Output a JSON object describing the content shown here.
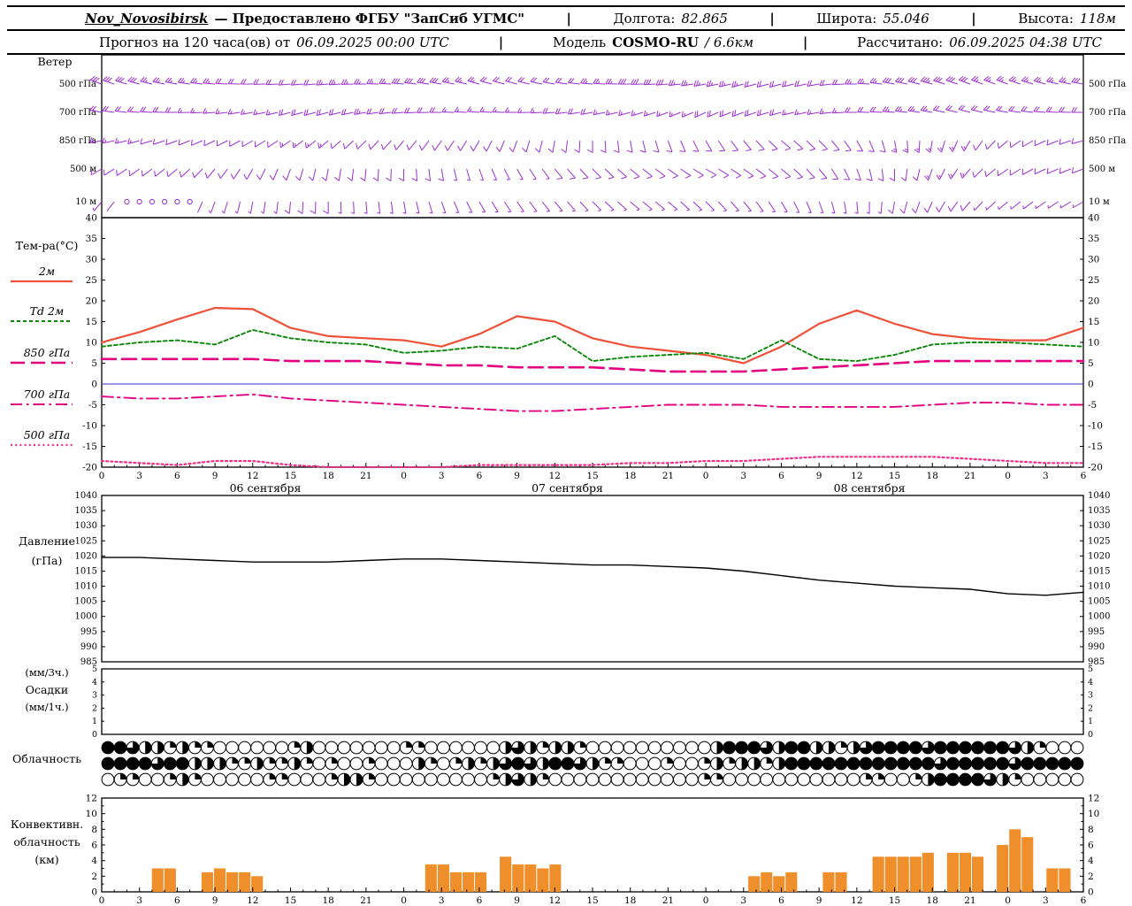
{
  "header": {
    "row1": {
      "station": "Nov_Novosibirsk",
      "provider": "— Предоставлено ФГБУ \"ЗапСиб УГМС\"",
      "lon_label": "Долгота:",
      "lon": "82.865",
      "lat_label": "Широта:",
      "lat": "55.046",
      "alt_label": "Высота:",
      "alt": "118м",
      "sep": "|"
    },
    "row2": {
      "forecast_label": "Прогноз на 120 часа(ов) от",
      "forecast_time": "06.09.2025 00:00 UTC",
      "model_label": "Модель",
      "model_name": "COSMO-RU",
      "model_res": "/ 6.6км",
      "calc_label": "Рассчитано:",
      "calc_time": "06.09.2025 04:38 UTC",
      "sep": "|"
    }
  },
  "labels": {
    "wind": "Ветер",
    "temp_title": "Тем-ра(°C)",
    "pressure_1": "Давление",
    "pressure_2": "(гПа)",
    "precip_1": "(мм/3ч.)",
    "precip_2": "Осадки",
    "precip_3": "(мм/1ч.)",
    "cloud": "Облачность",
    "conv_1": "Конвективн.",
    "conv_2": "облачность",
    "conv_3": "(км)"
  },
  "chart_data": {
    "x_hours": [
      0,
      3,
      6,
      9,
      12,
      15,
      18,
      21,
      24,
      27,
      30,
      33,
      36,
      39,
      42,
      45,
      48,
      51,
      54,
      57,
      60,
      63,
      66,
      69,
      72,
      75,
      78
    ],
    "x_tick_labels": [
      "0",
      "3",
      "6",
      "9",
      "12",
      "15",
      "18",
      "21",
      "0",
      "3",
      "6",
      "9",
      "12",
      "15",
      "18",
      "21",
      "0",
      "3",
      "6",
      "9",
      "12",
      "15",
      "18",
      "21",
      "0",
      "3",
      "6"
    ],
    "date_labels": [
      {
        "label": "06 сентября",
        "hour": 13
      },
      {
        "label": "07 сентября",
        "hour": 37
      },
      {
        "label": "08 сентября",
        "hour": 61
      }
    ],
    "wind": {
      "type": "wind-barbs",
      "color": "#9b2fd2",
      "levels": [
        {
          "name": "500 гПа",
          "dirs": [
            290,
            285,
            280,
            275,
            270,
            265,
            265,
            270,
            275,
            280,
            285,
            285,
            280,
            275,
            270,
            265,
            260,
            255,
            255,
            260,
            270,
            280,
            285,
            290,
            290,
            285,
            280
          ],
          "speeds": [
            15,
            15,
            12.5,
            12.5,
            10,
            10,
            12.5,
            12.5,
            15,
            15,
            12.5,
            10,
            10,
            12.5,
            15,
            15,
            12.5,
            12.5,
            10,
            10,
            12.5,
            15,
            17.5,
            15,
            12.5,
            12.5,
            15
          ]
        },
        {
          "name": "700 гПа",
          "dirs": [
            280,
            275,
            270,
            265,
            260,
            255,
            255,
            260,
            265,
            270,
            275,
            270,
            265,
            260,
            255,
            250,
            245,
            250,
            255,
            260,
            270,
            275,
            280,
            285,
            280,
            275,
            270
          ],
          "speeds": [
            10,
            10,
            10,
            7.5,
            7.5,
            10,
            10,
            12.5,
            10,
            10,
            7.5,
            7.5,
            10,
            10,
            7.5,
            7.5,
            10,
            10,
            10,
            7.5,
            10,
            12.5,
            12.5,
            10,
            10,
            10,
            10
          ]
        },
        {
          "name": "850 гПа",
          "dirs": [
            260,
            255,
            250,
            245,
            240,
            235,
            230,
            225,
            220,
            215,
            210,
            200,
            190,
            180,
            170,
            160,
            150,
            140,
            130,
            135,
            150,
            170,
            190,
            210,
            230,
            245,
            255
          ],
          "speeds": [
            7.5,
            7.5,
            5,
            5,
            5,
            7.5,
            7.5,
            5,
            5,
            5,
            5,
            5,
            5,
            5,
            5,
            5,
            5,
            5,
            5,
            5,
            5,
            7.5,
            7.5,
            7.5,
            5,
            5,
            5
          ]
        },
        {
          "name": "500 м",
          "dirs": [
            240,
            235,
            230,
            220,
            210,
            200,
            190,
            185,
            180,
            170,
            160,
            150,
            140,
            135,
            130,
            125,
            120,
            125,
            130,
            140,
            160,
            180,
            200,
            220,
            235,
            245,
            250
          ],
          "speeds": [
            5,
            5,
            5,
            5,
            5,
            5,
            5,
            5,
            5,
            5,
            2.5,
            2.5,
            5,
            5,
            5,
            5,
            5,
            5,
            5,
            5,
            5,
            5,
            7.5,
            7.5,
            5,
            5,
            5
          ]
        },
        {
          "name": "10 м",
          "dirs": [
            220,
            215,
            210,
            200,
            190,
            185,
            180,
            175,
            170,
            160,
            150,
            145,
            140,
            135,
            130,
            130,
            135,
            140,
            150,
            160,
            175,
            190,
            205,
            220,
            230,
            235,
            240
          ],
          "speeds": [
            2.5,
            0,
            0,
            2.5,
            2.5,
            5,
            5,
            2.5,
            2.5,
            2.5,
            2.5,
            2.5,
            2.5,
            2.5,
            2.5,
            2.5,
            2.5,
            2.5,
            2.5,
            2.5,
            2.5,
            5,
            5,
            5,
            2.5,
            2.5,
            2.5
          ]
        }
      ]
    },
    "temperature": {
      "type": "line",
      "ylim": [
        -20,
        40
      ],
      "ytick_step": 5,
      "zero_line_color": "#3333cc",
      "series": [
        {
          "name": "2м",
          "color": "#ee5038",
          "dash": "",
          "width": 2.2,
          "values": [
            10,
            12.5,
            15.5,
            18.3,
            18,
            13.5,
            11.5,
            11,
            10.5,
            9,
            12,
            16.3,
            15,
            11,
            9,
            8,
            7,
            5,
            9,
            14.5,
            17.7,
            14.5,
            12,
            11,
            10.5,
            10.5,
            13.5
          ]
        },
        {
          "name": "Td 2м",
          "color": "#0c870c",
          "dash": "4 3",
          "width": 1.9,
          "values": [
            9,
            10,
            10.5,
            9.5,
            13,
            11,
            10,
            9.5,
            7.5,
            8,
            9,
            8.5,
            11.5,
            5.5,
            6.5,
            7,
            7.5,
            6,
            10.5,
            6,
            5.5,
            7,
            9.5,
            10,
            10,
            9.5,
            9
          ]
        },
        {
          "name": "850 гПа",
          "color": "#e2007e",
          "dash": "16 7",
          "width": 2.6,
          "values": [
            6,
            6,
            6,
            6,
            6,
            5.5,
            5.5,
            5.5,
            5,
            4.5,
            4.5,
            4,
            4,
            4,
            3.5,
            3,
            3,
            3,
            3.5,
            4,
            4.5,
            5,
            5.5,
            5.5,
            5.5,
            5.5,
            5.5
          ]
        },
        {
          "name": "700 гПа",
          "color": "#e2007e",
          "dash": "13 5 2.5 5",
          "width": 1.9,
          "values": [
            -3,
            -3.5,
            -3.5,
            -3,
            -2.5,
            -3.5,
            -4,
            -4.5,
            -5,
            -5.5,
            -6,
            -6.5,
            -6.5,
            -6,
            -5.5,
            -5,
            -5,
            -5,
            -5.5,
            -5.5,
            -5.5,
            -5.5,
            -5,
            -4.5,
            -4.5,
            -5,
            -5
          ]
        },
        {
          "name": "500 гПа",
          "color": "#ee2f85",
          "dash": "2 3.2",
          "width": 2.2,
          "values": [
            -18.5,
            -19,
            -19.5,
            -18.5,
            -18.5,
            -19.5,
            -20,
            -20,
            -20,
            -20,
            -19.5,
            -19.5,
            -19.5,
            -19.5,
            -19,
            -19,
            -18.5,
            -18.5,
            -18,
            -17.5,
            -17.5,
            -17.5,
            -17.5,
            -18,
            -18.5,
            -19,
            -19
          ]
        }
      ]
    },
    "pressure": {
      "type": "line",
      "name": "Давление (гПа)",
      "ylim": [
        985,
        1040
      ],
      "ytick_step": 5,
      "color": "#000000",
      "values": [
        1019.5,
        1019.5,
        1019,
        1018.5,
        1018,
        1018,
        1018,
        1018.5,
        1019,
        1019,
        1018.5,
        1018,
        1017.5,
        1017,
        1017,
        1016.5,
        1016,
        1015,
        1013.5,
        1012,
        1011,
        1010,
        1009.5,
        1009,
        1007.5,
        1007,
        1008
      ]
    },
    "precipitation": {
      "type": "bar",
      "ylim": [
        0,
        5
      ],
      "values_mm": [
        0,
        0,
        0,
        0,
        0,
        0,
        0,
        0,
        0,
        0,
        0,
        0,
        0,
        0,
        0,
        0,
        0,
        0,
        0,
        0,
        0,
        0,
        0,
        0,
        0,
        0,
        0,
        0,
        0,
        0,
        0,
        0,
        0,
        0,
        0,
        0,
        0,
        0,
        0,
        0,
        0,
        0,
        0,
        0,
        0,
        0,
        0,
        0,
        0,
        0,
        0,
        0,
        0,
        0,
        0,
        0,
        0,
        0,
        0,
        0,
        0,
        0,
        0,
        0,
        0,
        0,
        0,
        0,
        0,
        0,
        0,
        0,
        0,
        0,
        0,
        0,
        0,
        0,
        0
      ]
    },
    "cloudiness": {
      "type": "cloud-cover",
      "rows": [
        [
          1,
          1,
          0.75,
          0.5,
          0.5,
          0.25,
          0.5,
          0.25,
          0.25,
          0,
          0,
          0,
          0,
          0,
          0,
          0.25,
          0.5,
          0,
          0,
          0,
          0,
          0,
          0,
          0,
          0.25,
          0.25,
          0,
          0,
          0,
          0,
          0,
          0,
          0.5,
          0.75,
          0.5,
          0.25,
          0.5,
          0.5,
          0.25,
          0,
          0,
          0,
          0,
          0,
          0,
          0,
          0,
          0,
          0,
          0.5,
          1,
          1,
          1,
          0.75,
          0.5,
          1,
          1,
          0.5,
          0.5,
          0.25,
          0.5,
          0.75,
          1,
          1,
          1,
          1,
          0.75,
          1,
          1,
          1,
          1,
          1,
          1,
          0.75,
          0.5,
          0.25,
          0,
          0,
          0
        ],
        [
          1,
          1,
          1,
          1,
          0.75,
          1,
          1,
          0.5,
          0.5,
          0.5,
          0.25,
          0.25,
          0.5,
          0.25,
          0.25,
          0.5,
          0.25,
          0,
          0.25,
          0,
          0,
          0.25,
          0,
          0,
          0,
          0.5,
          0.25,
          0,
          0.25,
          0.5,
          0.25,
          0.5,
          0.75,
          1,
          0.75,
          0.5,
          1,
          1,
          0.75,
          0.5,
          0.25,
          0.25,
          0,
          0,
          0,
          0.25,
          0,
          0,
          0.25,
          0.5,
          0.25,
          0.5,
          0.5,
          0.25,
          0.5,
          1,
          1,
          1,
          1,
          1,
          1,
          1,
          1,
          1,
          1,
          1,
          1,
          0.75,
          1,
          1,
          1,
          1,
          1,
          0.75,
          1,
          1,
          1,
          1,
          1
        ],
        [
          0,
          0.25,
          0.25,
          0,
          0,
          0.25,
          0.5,
          0.25,
          0,
          0,
          0,
          0,
          0,
          0.25,
          0.25,
          0,
          0,
          0,
          0.25,
          0.5,
          0.5,
          0.25,
          0,
          0,
          0,
          0,
          0,
          0,
          0,
          0,
          0,
          0.25,
          0.5,
          0.75,
          0.5,
          0.25,
          0,
          0,
          0,
          0,
          0,
          0,
          0,
          0,
          0,
          0,
          0,
          0,
          0.25,
          0.25,
          0,
          0,
          0,
          0,
          0,
          0,
          0,
          0,
          0,
          0,
          0,
          0.25,
          0.25,
          0,
          0,
          0.25,
          0.5,
          1,
          1,
          1,
          1,
          0.75,
          0.5,
          0.25,
          0,
          0,
          0,
          0,
          0
        ]
      ]
    },
    "convective": {
      "type": "bar",
      "ylim": [
        0,
        12
      ],
      "ytick_step": 2,
      "color": "#ef8f2b",
      "values_km": [
        0,
        0,
        0,
        0,
        3,
        3,
        0,
        0,
        2.5,
        3,
        2.5,
        2.5,
        2,
        0,
        0,
        0,
        0,
        0,
        0,
        0,
        0,
        0,
        0,
        0,
        0,
        0,
        3.5,
        3.5,
        2.5,
        2.5,
        2.5,
        0,
        4.5,
        3.5,
        3.5,
        3,
        3.5,
        0,
        0,
        0,
        0,
        0,
        0,
        0,
        0,
        0,
        0,
        0,
        0,
        0,
        0,
        0,
        2,
        2.5,
        2,
        2.5,
        0,
        0,
        2.5,
        2.5,
        0,
        0,
        4.5,
        4.5,
        4.5,
        4.5,
        5,
        0,
        5,
        5,
        4.5,
        0,
        6,
        8,
        7,
        0,
        3,
        3,
        0
      ]
    }
  }
}
